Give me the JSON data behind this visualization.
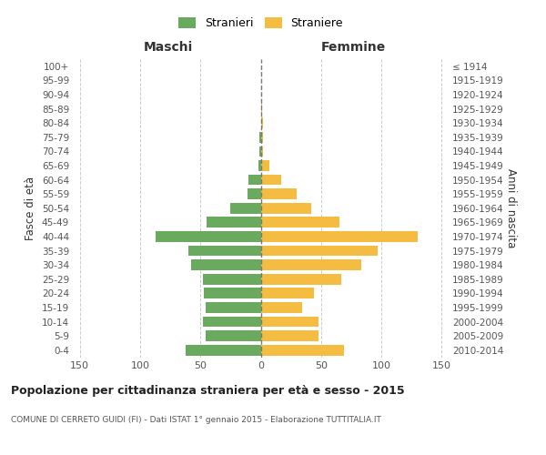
{
  "age_groups": [
    "100+",
    "95-99",
    "90-94",
    "85-89",
    "80-84",
    "75-79",
    "70-74",
    "65-69",
    "60-64",
    "55-59",
    "50-54",
    "45-49",
    "40-44",
    "35-39",
    "30-34",
    "25-29",
    "20-24",
    "15-19",
    "10-14",
    "5-9",
    "0-4"
  ],
  "birth_years": [
    "≤ 1914",
    "1915-1919",
    "1920-1924",
    "1925-1929",
    "1930-1934",
    "1935-1939",
    "1940-1944",
    "1945-1949",
    "1950-1954",
    "1955-1959",
    "1960-1964",
    "1965-1969",
    "1970-1974",
    "1975-1979",
    "1980-1984",
    "1985-1989",
    "1990-1994",
    "1995-1999",
    "2000-2004",
    "2005-2009",
    "2010-2014"
  ],
  "maschi": [
    0,
    0,
    0,
    0,
    0,
    1,
    1,
    2,
    10,
    11,
    25,
    45,
    87,
    60,
    58,
    48,
    47,
    46,
    48,
    46,
    62
  ],
  "femmine": [
    0,
    0,
    0,
    1,
    2,
    2,
    2,
    7,
    17,
    30,
    42,
    65,
    130,
    97,
    83,
    67,
    44,
    34,
    48,
    48,
    69
  ],
  "male_color": "#6aaa5f",
  "female_color": "#f5bc42",
  "background_color": "#ffffff",
  "grid_color": "#cccccc",
  "center_line_color": "#777777",
  "xlim": 155,
  "xticks": [
    -150,
    -100,
    -50,
    0,
    50,
    100,
    150
  ],
  "xticklabels": [
    "150",
    "100",
    "50",
    "0",
    "50",
    "100",
    "150"
  ],
  "title": "Popolazione per cittadinanza straniera per età e sesso - 2015",
  "subtitle": "COMUNE DI CERRETO GUIDI (FI) - Dati ISTAT 1° gennaio 2015 - Elaborazione TUTTITALIA.IT",
  "ylabel_left": "Fasce di età",
  "ylabel_right": "Anni di nascita",
  "header_left": "Maschi",
  "header_right": "Femmine",
  "legend_male": "Stranieri",
  "legend_female": "Straniere",
  "bar_height": 0.75
}
